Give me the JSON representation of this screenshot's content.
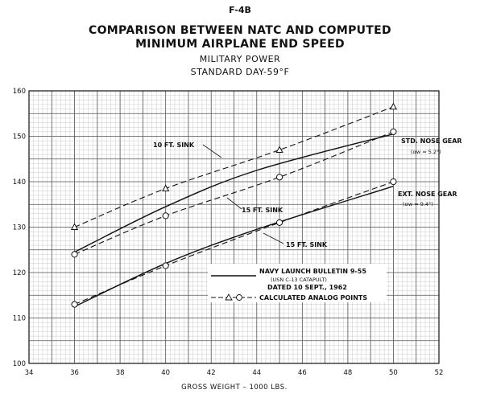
{
  "titles": {
    "model": "F-4B",
    "line1": "COMPARISON BETWEEN NATC AND COMPUTED",
    "line2": "MINIMUM AIRPLANE END SPEED",
    "line3": "MILITARY POWER",
    "line4": "STANDARD DAY-59°F"
  },
  "chart_data": {
    "type": "line",
    "xlabel": "GROSS WEIGHT – 1000 LBS.",
    "ylabel": "",
    "xlim": [
      34,
      52
    ],
    "ylim": [
      100,
      160
    ],
    "x_ticks": [
      34,
      36,
      38,
      40,
      42,
      44,
      46,
      48,
      50,
      52
    ],
    "y_ticks": [
      100,
      110,
      120,
      130,
      140,
      150,
      160
    ],
    "grid": true,
    "series": [
      {
        "name": "STD. NOSE GEAR (NAVY LAUNCH BULLETIN 9-55)",
        "style": "solid",
        "x": [
          36,
          40,
          44,
          50
        ],
        "y": [
          124.5,
          134.5,
          142.5,
          150.5
        ]
      },
      {
        "name": "EXT. NOSE GEAR (NAVY LAUNCH BULLETIN 9-55)",
        "style": "solid",
        "x": [
          36,
          40,
          44,
          50
        ],
        "y": [
          112.5,
          122,
          129.5,
          139
        ]
      },
      {
        "name": "10 FT. SINK (CALCULATED ANALOG)",
        "style": "dashed",
        "marker": "triangle",
        "x": [
          36,
          40,
          45,
          50
        ],
        "y": [
          130,
          138.5,
          147,
          156.5
        ]
      },
      {
        "name": "15 FT. SINK (CALCULATED ANALOG)",
        "style": "dashed",
        "marker": "circle",
        "x": [
          36,
          40,
          45,
          50
        ],
        "y": [
          124,
          132.5,
          141,
          151
        ]
      },
      {
        "name": "15 FT. SINK EXT. (CALCULATED ANALOG)",
        "style": "dashed",
        "marker": "circle",
        "x": [
          36,
          40,
          45,
          50
        ],
        "y": [
          113,
          121.5,
          131,
          140
        ]
      }
    ],
    "annotations": {
      "sink10": "10 FT. SINK",
      "sink15a": "15 FT. SINK",
      "sink15b": "15 FT. SINK",
      "std_gear": "STD. NOSE GEAR",
      "std_alpha": "(αw = 5.2°)",
      "ext_gear": "EXT. NOSE GEAR",
      "ext_alpha": "(αw = 9.4°)"
    },
    "legend": {
      "placement": "bottom-right",
      "line1": "NAVY LAUNCH BULLETIN 9-55",
      "line2": "(USN C-13 CATAPULT)",
      "line3": "DATED 10 SEPT., 1962",
      "line4": "CALCULATED ANALOG POINTS"
    }
  }
}
